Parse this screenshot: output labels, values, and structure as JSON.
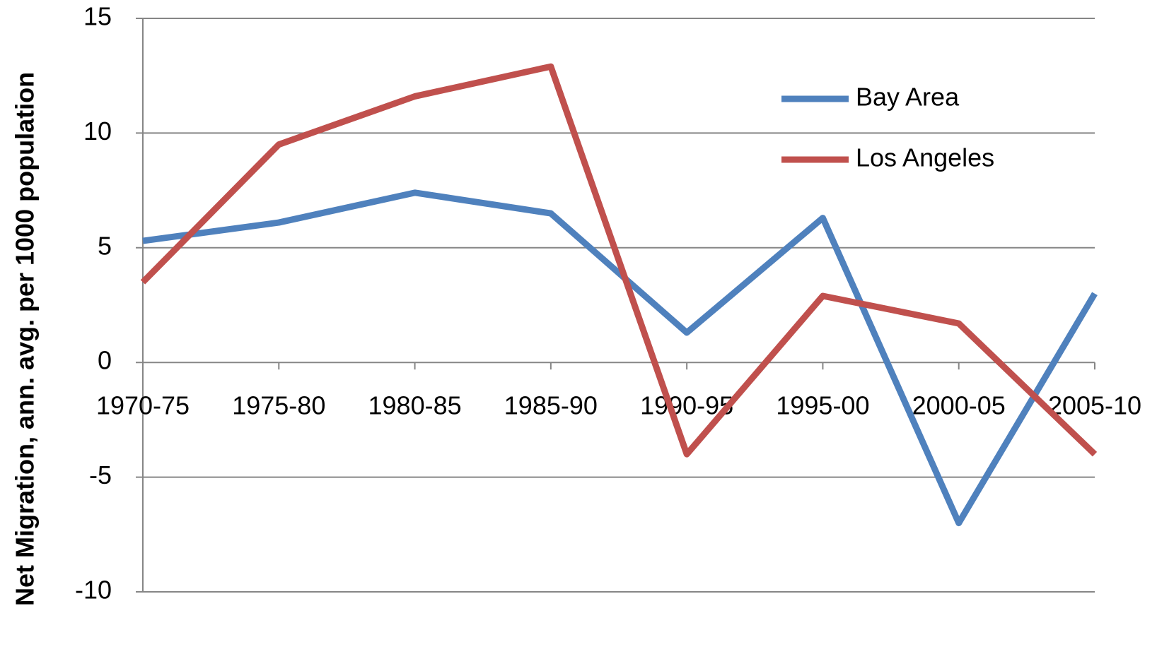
{
  "chart_data": {
    "type": "line",
    "y_label": "Net Migration, ann. avg. per 1000 population",
    "categories": [
      "1970-75",
      "1975-80",
      "1980-85",
      "1985-90",
      "1990-95",
      "1995-00",
      "2000-05",
      "2005-10"
    ],
    "series": [
      {
        "name": "Bay Area",
        "color": "#4f81bd",
        "values": [
          5.3,
          6.1,
          7.4,
          6.5,
          1.3,
          6.3,
          -7.0,
          3.0
        ]
      },
      {
        "name": "Los Angeles",
        "color": "#c0504d",
        "values": [
          3.5,
          9.5,
          11.6,
          12.9,
          -4.0,
          2.9,
          1.7,
          -4.0
        ]
      }
    ],
    "ylim": [
      -10,
      15
    ],
    "yticks": [
      -10,
      -5,
      0,
      5,
      10,
      15
    ],
    "grid": true,
    "legend": "upper right"
  }
}
